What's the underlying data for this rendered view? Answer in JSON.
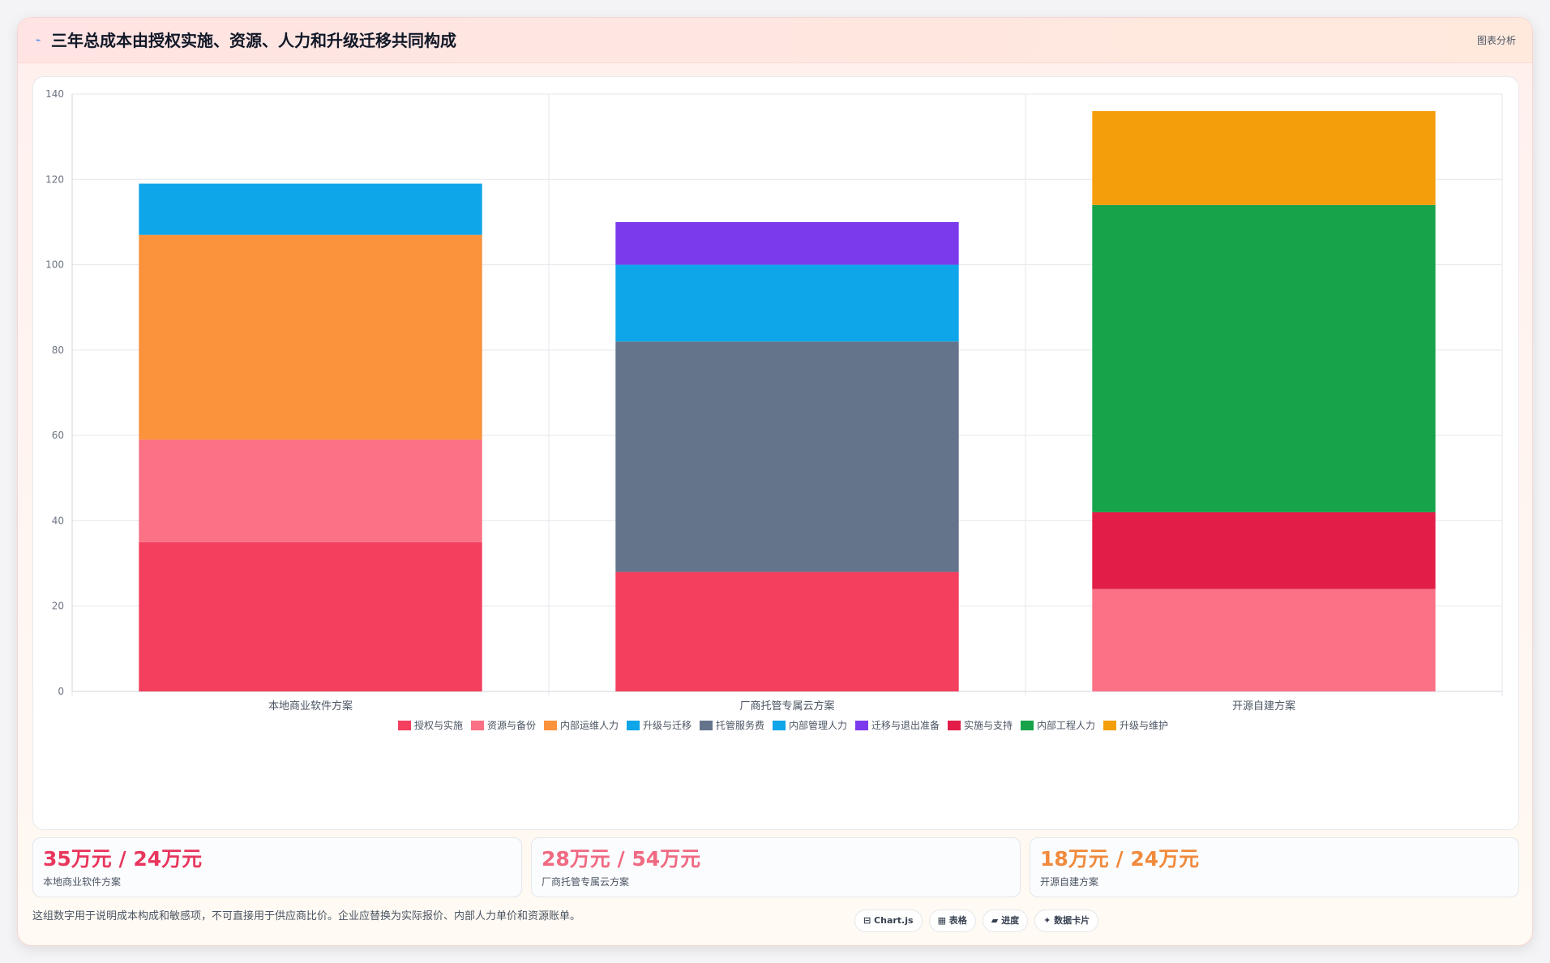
{
  "header": {
    "icon": "chart-icon",
    "title": "三年总成本由授权实施、资源、人力和升级迁移共同构成",
    "tag": "图表分析"
  },
  "chart_data": {
    "type": "bar",
    "stacked": true,
    "categories": [
      "本地商业软件方案",
      "厂商托管专属云方案",
      "开源自建方案"
    ],
    "ylim": [
      0,
      140
    ],
    "yticks": [
      0,
      20,
      40,
      60,
      80,
      100,
      120,
      140
    ],
    "grid": true,
    "legend_position": "bottom",
    "series": [
      {
        "name": "授权与实施",
        "color": "#f43f5e",
        "values": [
          35,
          28,
          0
        ]
      },
      {
        "name": "资源与备份",
        "color": "#fb7185",
        "values": [
          24,
          0,
          24
        ]
      },
      {
        "name": "内部运维人力",
        "color": "#fb923c",
        "values": [
          48,
          0,
          0
        ]
      },
      {
        "name": "升级与迁移",
        "color": "#0ea5e9",
        "values": [
          12,
          0,
          0
        ]
      },
      {
        "name": "托管服务费",
        "color": "#64748b",
        "values": [
          0,
          54,
          0
        ]
      },
      {
        "name": "内部管理人力",
        "color": "#0ea5e9",
        "values": [
          0,
          18,
          0
        ]
      },
      {
        "name": "迁移与退出准备",
        "color": "#7c3aed",
        "values": [
          0,
          10,
          0
        ]
      },
      {
        "name": "实施与支持",
        "color": "#e11d48",
        "values": [
          0,
          0,
          18
        ]
      },
      {
        "name": "内部工程人力",
        "color": "#16a34a",
        "values": [
          0,
          0,
          72
        ]
      },
      {
        "name": "升级与维护",
        "color": "#f59e0b",
        "values": [
          0,
          0,
          22
        ]
      }
    ]
  },
  "kpis": [
    {
      "value": "35万元 / 24万元",
      "label": "本地商业软件方案",
      "color": "#e8365d"
    },
    {
      "value": "28万元 / 54万元",
      "label": "厂商托管专属云方案",
      "color": "#f06a82"
    },
    {
      "value": "18万元 / 24万元",
      "label": "开源自建方案",
      "color": "#f08a3c"
    }
  ],
  "footnote": "这组数字用于说明成本构成和敏感项，不可直接用于供应商比价。企业应替换为实际报价、内部人力单价和资源账单。",
  "chips": [
    {
      "icon": "table-icon",
      "label": "⊟ Chart.js"
    },
    {
      "icon": "grid-icon",
      "label": "▦ 表格"
    },
    {
      "icon": "progress-icon",
      "label": "▰ 进度"
    },
    {
      "icon": "card-icon",
      "label": "✦ 数据卡片"
    }
  ]
}
